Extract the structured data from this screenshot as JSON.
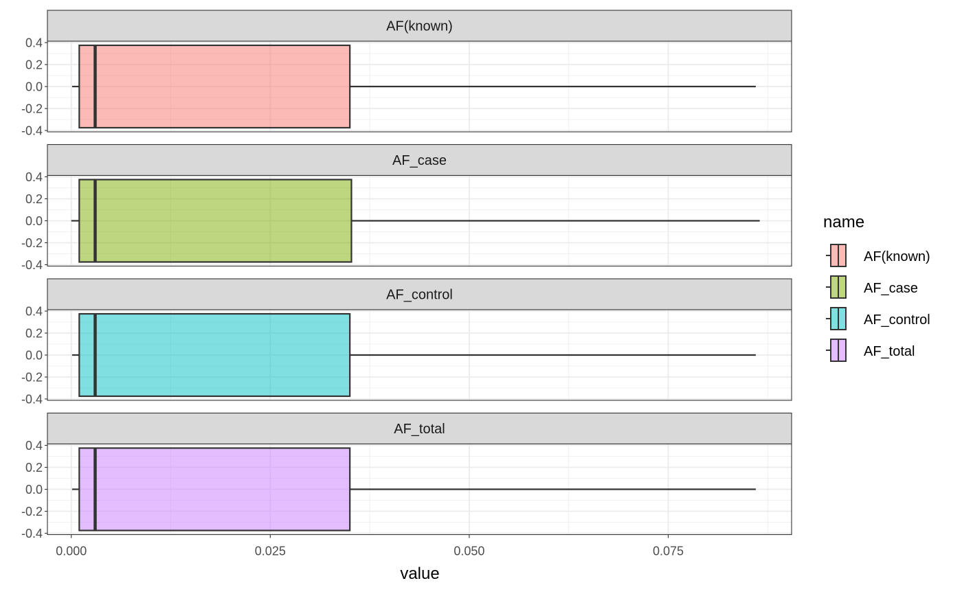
{
  "chart_data": {
    "type": "boxplot",
    "xlabel": "value",
    "ylabel": "",
    "xlim": [
      -0.003,
      0.0905
    ],
    "ylim": [
      -0.4,
      0.4
    ],
    "x_ticks": [
      0.0,
      0.025,
      0.05,
      0.075
    ],
    "x_tick_labels": [
      "0.000",
      "0.025",
      "0.050",
      "0.075"
    ],
    "y_ticks": [
      0.4,
      0.2,
      0.0,
      -0.2,
      -0.4
    ],
    "y_tick_labels": [
      "0.4",
      "0.2",
      "0.0",
      "-0.2",
      "-0.4"
    ],
    "grid": true,
    "facet_by": "name",
    "legend": {
      "title": "name",
      "position": "right"
    },
    "series": [
      {
        "name": "AF(known)",
        "color": "#F8766D",
        "min": 0.0001,
        "q1": 0.001,
        "median": 0.003,
        "q3": 0.035,
        "max": 0.086
      },
      {
        "name": "AF_case",
        "color": "#7CAE00",
        "min": 0.0,
        "q1": 0.001,
        "median": 0.003,
        "q3": 0.0352,
        "max": 0.0865
      },
      {
        "name": "AF_control",
        "color": "#00BFC4",
        "min": 0.0001,
        "q1": 0.001,
        "median": 0.003,
        "q3": 0.035,
        "max": 0.086
      },
      {
        "name": "AF_total",
        "color": "#C77CFF",
        "min": 0.0001,
        "q1": 0.001,
        "median": 0.003,
        "q3": 0.035,
        "max": 0.086
      }
    ]
  }
}
